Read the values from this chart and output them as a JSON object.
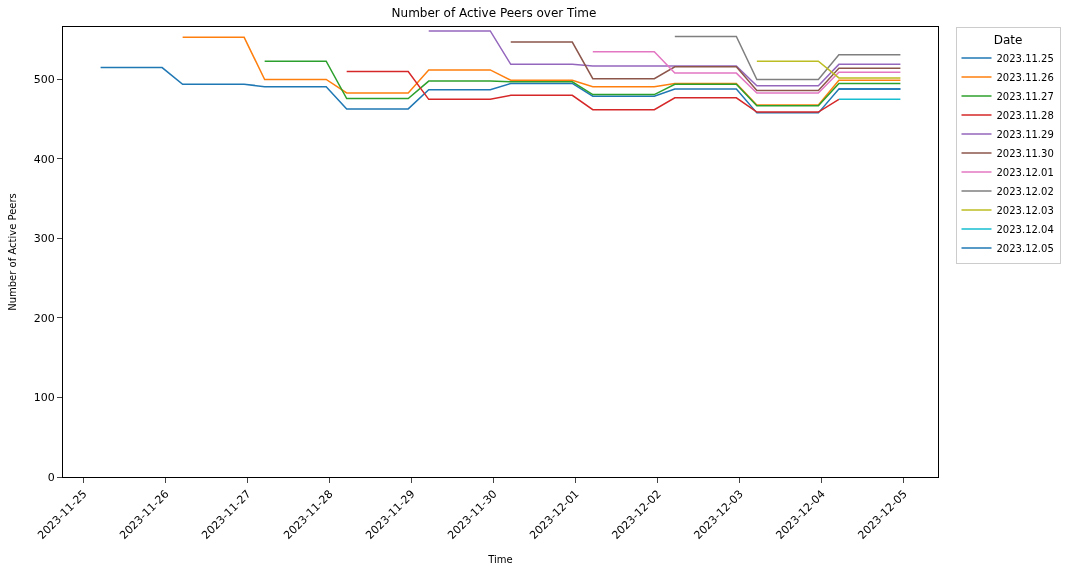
{
  "chart_data": {
    "type": "line",
    "title": "Number of Active Peers over Time",
    "xlabel": "Time",
    "ylabel": "Number of Active Peers",
    "legend_title": "Date",
    "legend": "top right",
    "marker": "none",
    "line_style": "solid",
    "xlim": [
      "2023-11-24T18:00",
      "2023-12-05T10:00"
    ],
    "xticks": [
      "2023-11-25",
      "2023-11-26",
      "2023-11-27",
      "2023-11-28",
      "2023-11-29",
      "2023-11-30",
      "2023-12-01",
      "2023-12-02",
      "2023-12-03",
      "2023-12-04",
      "2023-12-05"
    ],
    "ylim": [
      0,
      566
    ],
    "yticks": [
      0,
      100,
      200,
      300,
      400,
      500
    ],
    "series": [
      {
        "name": "2023.11.25",
        "color": "#1f77b4",
        "x": [
          "2023-11-25T05:00",
          "2023-11-25T23:00",
          "2023-11-26T05:00",
          "2023-11-26T23:00",
          "2023-11-27T05:00",
          "2023-11-27T23:00",
          "2023-11-28T05:00",
          "2023-11-28T23:00",
          "2023-11-29T05:00",
          "2023-11-29T23:00",
          "2023-11-30T05:00",
          "2023-11-30T23:00",
          "2023-12-01T05:00",
          "2023-12-01T23:00",
          "2023-12-02T05:00",
          "2023-12-02T23:00",
          "2023-12-03T05:00",
          "2023-12-03T23:00",
          "2023-12-04T05:00",
          "2023-12-04T23:00"
        ],
        "values": [
          515,
          515,
          494,
          494,
          491,
          491,
          463,
          463,
          487,
          487,
          495,
          495,
          479,
          479,
          488,
          488,
          458,
          458,
          488,
          488
        ]
      },
      {
        "name": "2023.11.26",
        "color": "#ff7f0e",
        "x": [
          "2023-11-26T05:00",
          "2023-11-26T23:00",
          "2023-11-27T05:00",
          "2023-11-27T23:00",
          "2023-11-28T05:00",
          "2023-11-28T23:00",
          "2023-11-29T05:00",
          "2023-11-29T23:00",
          "2023-11-30T05:00",
          "2023-11-30T23:00",
          "2023-12-01T05:00",
          "2023-12-01T23:00",
          "2023-12-02T05:00",
          "2023-12-02T23:00",
          "2023-12-03T05:00",
          "2023-12-03T23:00",
          "2023-12-04T05:00",
          "2023-12-04T23:00"
        ],
        "values": [
          553,
          553,
          500,
          500,
          483,
          483,
          512,
          512,
          499,
          499,
          491,
          491,
          495,
          495,
          468,
          468,
          499,
          499
        ]
      },
      {
        "name": "2023.11.27",
        "color": "#2ca02c",
        "x": [
          "2023-11-27T05:00",
          "2023-11-27T23:00",
          "2023-11-28T05:00",
          "2023-11-28T23:00",
          "2023-11-29T05:00",
          "2023-11-29T23:00",
          "2023-11-30T05:00",
          "2023-11-30T23:00",
          "2023-12-01T05:00",
          "2023-12-01T23:00",
          "2023-12-02T05:00",
          "2023-12-02T23:00",
          "2023-12-03T05:00",
          "2023-12-03T23:00",
          "2023-12-04T05:00",
          "2023-12-04T23:00"
        ],
        "values": [
          523,
          523,
          476,
          476,
          498,
          498,
          497,
          497,
          481,
          481,
          494,
          494,
          467,
          467,
          495,
          495
        ]
      },
      {
        "name": "2023.11.28",
        "color": "#d62728",
        "x": [
          "2023-11-28T05:00",
          "2023-11-28T23:00",
          "2023-11-29T05:00",
          "2023-11-29T23:00",
          "2023-11-30T05:00",
          "2023-11-30T23:00",
          "2023-12-01T05:00",
          "2023-12-01T23:00",
          "2023-12-02T05:00",
          "2023-12-02T23:00",
          "2023-12-03T05:00",
          "2023-12-03T23:00",
          "2023-12-04T05:00"
        ],
        "values": [
          510,
          510,
          475,
          475,
          480,
          480,
          462,
          462,
          477,
          477,
          459,
          459,
          475
        ]
      },
      {
        "name": "2023.11.29",
        "color": "#9467bd",
        "x": [
          "2023-11-29T05:00",
          "2023-11-29T23:00",
          "2023-11-30T05:00",
          "2023-11-30T23:00",
          "2023-12-01T05:00",
          "2023-12-01T23:00",
          "2023-12-02T05:00",
          "2023-12-02T23:00",
          "2023-12-03T05:00",
          "2023-12-03T23:00",
          "2023-12-04T05:00",
          "2023-12-04T23:00"
        ],
        "values": [
          561,
          561,
          519,
          519,
          517,
          517,
          517,
          517,
          492,
          492,
          519,
          519
        ]
      },
      {
        "name": "2023.11.30",
        "color": "#8c564b",
        "x": [
          "2023-11-30T05:00",
          "2023-11-30T23:00",
          "2023-12-01T05:00",
          "2023-12-01T23:00",
          "2023-12-02T05:00",
          "2023-12-02T23:00",
          "2023-12-03T05:00",
          "2023-12-03T23:00",
          "2023-12-04T05:00",
          "2023-12-04T23:00"
        ],
        "values": [
          547,
          547,
          501,
          501,
          516,
          516,
          486,
          486,
          514,
          514
        ]
      },
      {
        "name": "2023.12.01",
        "color": "#e377c2",
        "x": [
          "2023-12-01T05:00",
          "2023-12-01T23:00",
          "2023-12-02T05:00",
          "2023-12-02T23:00",
          "2023-12-03T05:00",
          "2023-12-03T23:00",
          "2023-12-04T05:00",
          "2023-12-04T23:00"
        ],
        "values": [
          535,
          535,
          508,
          508,
          483,
          483,
          509,
          509
        ]
      },
      {
        "name": "2023.12.02",
        "color": "#7f7f7f",
        "x": [
          "2023-12-02T05:00",
          "2023-12-02T23:00",
          "2023-12-03T05:00",
          "2023-12-03T23:00",
          "2023-12-04T05:00",
          "2023-12-04T23:00"
        ],
        "values": [
          554,
          554,
          500,
          500,
          531,
          531
        ]
      },
      {
        "name": "2023.12.03",
        "color": "#bcbd22",
        "x": [
          "2023-12-03T05:00",
          "2023-12-03T23:00",
          "2023-12-04T05:00",
          "2023-12-04T23:00"
        ],
        "values": [
          523,
          523,
          502,
          502
        ]
      },
      {
        "name": "2023.12.04",
        "color": "#17becf",
        "x": [
          "2023-12-04T05:00",
          "2023-12-04T23:00"
        ],
        "values": [
          475,
          475
        ]
      },
      {
        "name": "2023.12.05",
        "color": "#1f77b4",
        "x": [
          "2023-12-04T05:00",
          "2023-12-04T23:00"
        ],
        "values": [
          488,
          488
        ]
      }
    ]
  }
}
